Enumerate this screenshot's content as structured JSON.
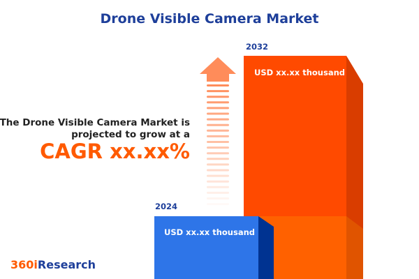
{
  "title": "Drone Visible Camera Market",
  "blurb_line1": "The Drone Visible Camera Market is",
  "blurb_line2": "projected to grow at a",
  "cagr": "CAGR xx.xx%",
  "logo": {
    "part1": "360i",
    "part2": "Research"
  },
  "chart_data": {
    "type": "bar",
    "categories": [
      "2024",
      "2032"
    ],
    "value_labels": [
      "USD xx.xx thousand",
      "USD xx.xx thousand"
    ],
    "colors": {
      "2024": "#2e75e8",
      "2032": "#ff4a00",
      "accent": "#ff8c5a"
    }
  }
}
